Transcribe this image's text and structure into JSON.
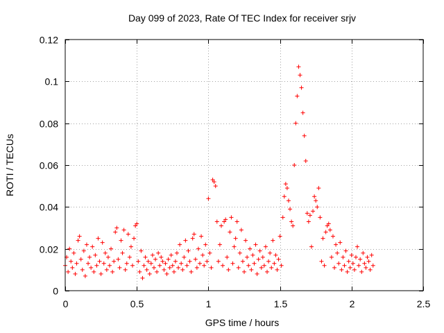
{
  "chart_data": {
    "type": "scatter",
    "title": "Day 099 of 2023, Rate Of TEC Index for receiver srjv",
    "xlabel": "GPS time / hours",
    "ylabel": "ROTI / TECUs",
    "xlim": [
      0,
      2.5
    ],
    "ylim": [
      0,
      0.12
    ],
    "xticks": [
      0,
      0.5,
      1,
      1.5,
      2,
      2.5
    ],
    "xtick_labels": [
      "0",
      "0.5",
      "1",
      "1.5",
      "2",
      "2.5"
    ],
    "yticks": [
      0,
      0.02,
      0.04,
      0.06,
      0.08,
      0.1,
      0.12
    ],
    "ytick_labels": [
      "0",
      "0.02",
      "0.04",
      "0.06",
      "0.08",
      "0.1",
      "0.12"
    ],
    "grid": true,
    "marker": "+",
    "color": "#ff0000",
    "series": [
      {
        "name": "ROTI",
        "points": [
          [
            0.0,
            0.012
          ],
          [
            0.01,
            0.016
          ],
          [
            0.02,
            0.009
          ],
          [
            0.03,
            0.02
          ],
          [
            0.04,
            0.014
          ],
          [
            0.05,
            0.011
          ],
          [
            0.06,
            0.018
          ],
          [
            0.07,
            0.008
          ],
          [
            0.08,
            0.013
          ],
          [
            0.09,
            0.024
          ],
          [
            0.1,
            0.026
          ],
          [
            0.11,
            0.015
          ],
          [
            0.12,
            0.01
          ],
          [
            0.13,
            0.019
          ],
          [
            0.14,
            0.007
          ],
          [
            0.15,
            0.022
          ],
          [
            0.16,
            0.013
          ],
          [
            0.17,
            0.016
          ],
          [
            0.18,
            0.011
          ],
          [
            0.19,
            0.021
          ],
          [
            0.2,
            0.009
          ],
          [
            0.21,
            0.017
          ],
          [
            0.22,
            0.012
          ],
          [
            0.23,
            0.025
          ],
          [
            0.24,
            0.014
          ],
          [
            0.25,
            0.008
          ],
          [
            0.26,
            0.023
          ],
          [
            0.27,
            0.013
          ],
          [
            0.28,
            0.018
          ],
          [
            0.29,
            0.01
          ],
          [
            0.3,
            0.016
          ],
          [
            0.31,
            0.012
          ],
          [
            0.32,
            0.02
          ],
          [
            0.33,
            0.009
          ],
          [
            0.34,
            0.014
          ],
          [
            0.35,
            0.028
          ],
          [
            0.36,
            0.03
          ],
          [
            0.37,
            0.015
          ],
          [
            0.38,
            0.011
          ],
          [
            0.39,
            0.024
          ],
          [
            0.4,
            0.018
          ],
          [
            0.41,
            0.029
          ],
          [
            0.42,
            0.01
          ],
          [
            0.43,
            0.013
          ],
          [
            0.44,
            0.027
          ],
          [
            0.45,
            0.016
          ],
          [
            0.46,
            0.021
          ],
          [
            0.47,
            0.012
          ],
          [
            0.48,
            0.025
          ],
          [
            0.49,
            0.031
          ],
          [
            0.5,
            0.032
          ],
          [
            0.51,
            0.014
          ],
          [
            0.52,
            0.009
          ],
          [
            0.53,
            0.019
          ],
          [
            0.54,
            0.006
          ],
          [
            0.55,
            0.012
          ],
          [
            0.56,
            0.016
          ],
          [
            0.57,
            0.01
          ],
          [
            0.58,
            0.014
          ],
          [
            0.59,
            0.008
          ],
          [
            0.6,
            0.013
          ],
          [
            0.61,
            0.017
          ],
          [
            0.62,
            0.011
          ],
          [
            0.63,
            0.015
          ],
          [
            0.64,
            0.009
          ],
          [
            0.65,
            0.018
          ],
          [
            0.66,
            0.012
          ],
          [
            0.67,
            0.016
          ],
          [
            0.68,
            0.014
          ],
          [
            0.69,
            0.01
          ],
          [
            0.7,
            0.013
          ],
          [
            0.71,
            0.008
          ],
          [
            0.72,
            0.015
          ],
          [
            0.73,
            0.011
          ],
          [
            0.74,
            0.017
          ],
          [
            0.75,
            0.012
          ],
          [
            0.76,
            0.009
          ],
          [
            0.77,
            0.014
          ],
          [
            0.78,
            0.018
          ],
          [
            0.79,
            0.011
          ],
          [
            0.8,
            0.022
          ],
          [
            0.81,
            0.013
          ],
          [
            0.82,
            0.01
          ],
          [
            0.83,
            0.016
          ],
          [
            0.84,
            0.024
          ],
          [
            0.85,
            0.012
          ],
          [
            0.86,
            0.019
          ],
          [
            0.87,
            0.014
          ],
          [
            0.88,
            0.009
          ],
          [
            0.89,
            0.025
          ],
          [
            0.9,
            0.027
          ],
          [
            0.91,
            0.015
          ],
          [
            0.92,
            0.011
          ],
          [
            0.93,
            0.02
          ],
          [
            0.94,
            0.013
          ],
          [
            0.95,
            0.026
          ],
          [
            0.96,
            0.017
          ],
          [
            0.97,
            0.012
          ],
          [
            0.98,
            0.022
          ],
          [
            0.99,
            0.014
          ],
          [
            1.0,
            0.044
          ],
          [
            1.01,
            0.018
          ],
          [
            1.02,
            0.011
          ],
          [
            1.03,
            0.053
          ],
          [
            1.04,
            0.052
          ],
          [
            1.05,
            0.05
          ],
          [
            1.06,
            0.033
          ],
          [
            1.07,
            0.014
          ],
          [
            1.08,
            0.022
          ],
          [
            1.09,
            0.031
          ],
          [
            1.1,
            0.012
          ],
          [
            1.11,
            0.033
          ],
          [
            1.12,
            0.034
          ],
          [
            1.13,
            0.016
          ],
          [
            1.14,
            0.01
          ],
          [
            1.15,
            0.028
          ],
          [
            1.16,
            0.035
          ],
          [
            1.17,
            0.013
          ],
          [
            1.18,
            0.021
          ],
          [
            1.19,
            0.025
          ],
          [
            1.2,
            0.033
          ],
          [
            1.21,
            0.011
          ],
          [
            1.22,
            0.018
          ],
          [
            1.23,
            0.029
          ],
          [
            1.24,
            0.014
          ],
          [
            1.25,
            0.009
          ],
          [
            1.26,
            0.024
          ],
          [
            1.27,
            0.016
          ],
          [
            1.28,
            0.012
          ],
          [
            1.29,
            0.02
          ],
          [
            1.3,
            0.01
          ],
          [
            1.31,
            0.017
          ],
          [
            1.32,
            0.013
          ],
          [
            1.33,
            0.022
          ],
          [
            1.34,
            0.008
          ],
          [
            1.35,
            0.015
          ],
          [
            1.36,
            0.019
          ],
          [
            1.37,
            0.011
          ],
          [
            1.38,
            0.016
          ],
          [
            1.39,
            0.012
          ],
          [
            1.4,
            0.021
          ],
          [
            1.41,
            0.009
          ],
          [
            1.42,
            0.014
          ],
          [
            1.43,
            0.018
          ],
          [
            1.44,
            0.011
          ],
          [
            1.45,
            0.024
          ],
          [
            1.46,
            0.013
          ],
          [
            1.47,
            0.017
          ],
          [
            1.48,
            0.01
          ],
          [
            1.49,
            0.015
          ],
          [
            1.5,
            0.026
          ],
          [
            1.51,
            0.012
          ],
          [
            1.52,
            0.035
          ],
          [
            1.53,
            0.045
          ],
          [
            1.54,
            0.051
          ],
          [
            1.55,
            0.049
          ],
          [
            1.56,
            0.043
          ],
          [
            1.57,
            0.039
          ],
          [
            1.58,
            0.033
          ],
          [
            1.59,
            0.031
          ],
          [
            1.6,
            0.06
          ],
          [
            1.61,
            0.08
          ],
          [
            1.62,
            0.093
          ],
          [
            1.63,
            0.107
          ],
          [
            1.64,
            0.103
          ],
          [
            1.65,
            0.097
          ],
          [
            1.66,
            0.085
          ],
          [
            1.67,
            0.074
          ],
          [
            1.68,
            0.062
          ],
          [
            1.69,
            0.037
          ],
          [
            1.7,
            0.033
          ],
          [
            1.71,
            0.036
          ],
          [
            1.72,
            0.021
          ],
          [
            1.73,
            0.038
          ],
          [
            1.74,
            0.045
          ],
          [
            1.75,
            0.043
          ],
          [
            1.76,
            0.04
          ],
          [
            1.77,
            0.049
          ],
          [
            1.78,
            0.035
          ],
          [
            1.79,
            0.014
          ],
          [
            1.8,
            0.025
          ],
          [
            1.81,
            0.012
          ],
          [
            1.82,
            0.028
          ],
          [
            1.83,
            0.031
          ],
          [
            1.84,
            0.032
          ],
          [
            1.85,
            0.029
          ],
          [
            1.86,
            0.016
          ],
          [
            1.87,
            0.026
          ],
          [
            1.88,
            0.011
          ],
          [
            1.89,
            0.022
          ],
          [
            1.9,
            0.018
          ],
          [
            1.91,
            0.013
          ],
          [
            1.92,
            0.023
          ],
          [
            1.93,
            0.01
          ],
          [
            1.94,
            0.016
          ],
          [
            1.95,
            0.012
          ],
          [
            1.96,
            0.019
          ],
          [
            1.97,
            0.009
          ],
          [
            1.98,
            0.014
          ],
          [
            1.99,
            0.011
          ],
          [
            2.0,
            0.017
          ],
          [
            2.01,
            0.013
          ],
          [
            2.02,
            0.01
          ],
          [
            2.03,
            0.016
          ],
          [
            2.04,
            0.021
          ],
          [
            2.05,
            0.012
          ],
          [
            2.06,
            0.015
          ],
          [
            2.07,
            0.009
          ],
          [
            2.08,
            0.018
          ],
          [
            2.09,
            0.013
          ],
          [
            2.1,
            0.011
          ],
          [
            2.11,
            0.016
          ],
          [
            2.12,
            0.014
          ],
          [
            2.13,
            0.01
          ],
          [
            2.14,
            0.017
          ],
          [
            2.15,
            0.012
          ]
        ]
      }
    ]
  }
}
